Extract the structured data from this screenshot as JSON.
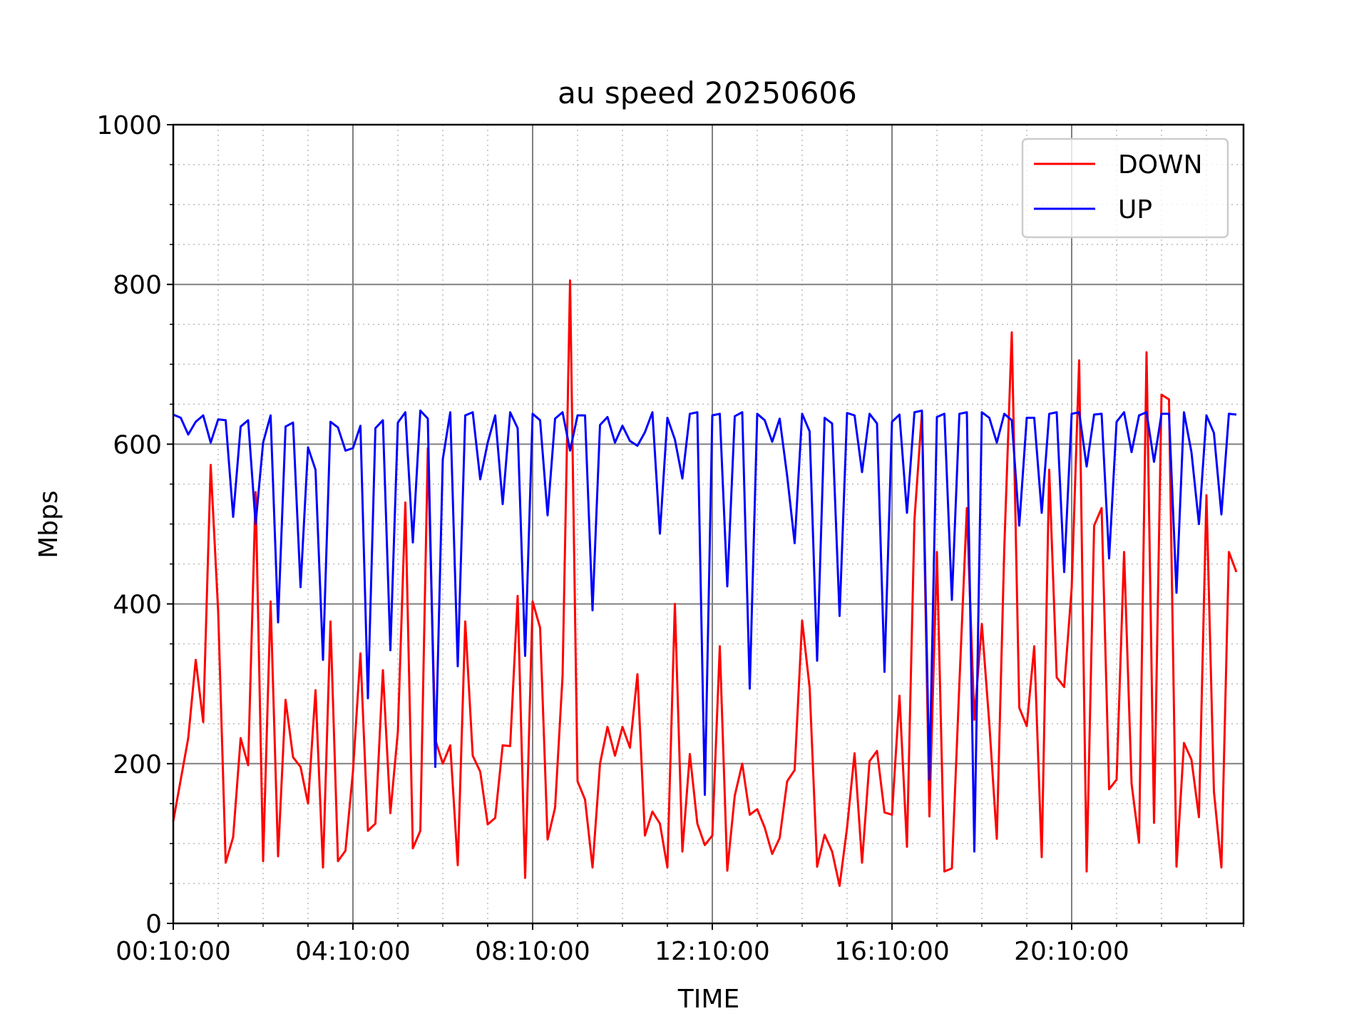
{
  "chart_data": {
    "type": "line",
    "title": "au speed 20250606",
    "xlabel": "TIME",
    "ylabel": "Mbps",
    "ylim": [
      0,
      1000
    ],
    "yticks": [
      0,
      200,
      400,
      600,
      800,
      1000
    ],
    "xtick_labels": [
      "00:10:00",
      "04:10:00",
      "08:10:00",
      "12:10:00",
      "16:10:00",
      "20:10:00"
    ],
    "grid": true,
    "legend": "top-right",
    "series": [
      {
        "name": "DOWN",
        "color": "#ff0000",
        "values": [
          128,
          180,
          232,
          330,
          252,
          574,
          390,
          76,
          108,
          232,
          198,
          540,
          78,
          403,
          84,
          280,
          208,
          196,
          150,
          292,
          70,
          378,
          78,
          91,
          190,
          338,
          116,
          125,
          317,
          138,
          240,
          527,
          94,
          116,
          595,
          230,
          200,
          223,
          73,
          378,
          210,
          190,
          124,
          132,
          223,
          222,
          410,
          57,
          403,
          370,
          105,
          145,
          310,
          805,
          178,
          155,
          70,
          200,
          246,
          210,
          246,
          220,
          312,
          110,
          140,
          125,
          70,
          400,
          90,
          212,
          125,
          98,
          110,
          347,
          66,
          160,
          200,
          136,
          143,
          120,
          87,
          107,
          178,
          192,
          379,
          295,
          71,
          111,
          90,
          47,
          120,
          213,
          76,
          203,
          216,
          139,
          136,
          285,
          96,
          505,
          640,
          134,
          465,
          65,
          69,
          300,
          520,
          255,
          375,
          250,
          106,
          470,
          740,
          270,
          247,
          347,
          83,
          568,
          308,
          296,
          420,
          705,
          65,
          498,
          520,
          168,
          180,
          465,
          175,
          101,
          715,
          126,
          662,
          656,
          71,
          226,
          205,
          133,
          536,
          165,
          70,
          465,
          440
        ]
      },
      {
        "name": "UP",
        "color": "#0000ff",
        "values": [
          637,
          633,
          612,
          628,
          636,
          602,
          631,
          630,
          509,
          622,
          630,
          500,
          602,
          636,
          377,
          622,
          627,
          421,
          596,
          568,
          330,
          628,
          621,
          592,
          595,
          623,
          282,
          620,
          630,
          342,
          627,
          640,
          477,
          642,
          632,
          196,
          581,
          640,
          322,
          636,
          640,
          556,
          602,
          636,
          525,
          640,
          620,
          335,
          638,
          630,
          511,
          632,
          640,
          592,
          636,
          636,
          392,
          624,
          634,
          602,
          623,
          604,
          598,
          615,
          640,
          488,
          633,
          606,
          557,
          638,
          640,
          161,
          636,
          638,
          422,
          635,
          640,
          294,
          638,
          630,
          603,
          632,
          560,
          476,
          638,
          616,
          329,
          633,
          626,
          385,
          639,
          636,
          565,
          638,
          626,
          315,
          628,
          637,
          514,
          640,
          642,
          180,
          634,
          638,
          405,
          638,
          640,
          90,
          640,
          633,
          602,
          638,
          630,
          498,
          633,
          633,
          514,
          638,
          640,
          440,
          638,
          640,
          572,
          637,
          638,
          457,
          628,
          640,
          590,
          636,
          640,
          578,
          638,
          638,
          414,
          640,
          590,
          500,
          636,
          614,
          512,
          638,
          637
        ]
      }
    ]
  }
}
